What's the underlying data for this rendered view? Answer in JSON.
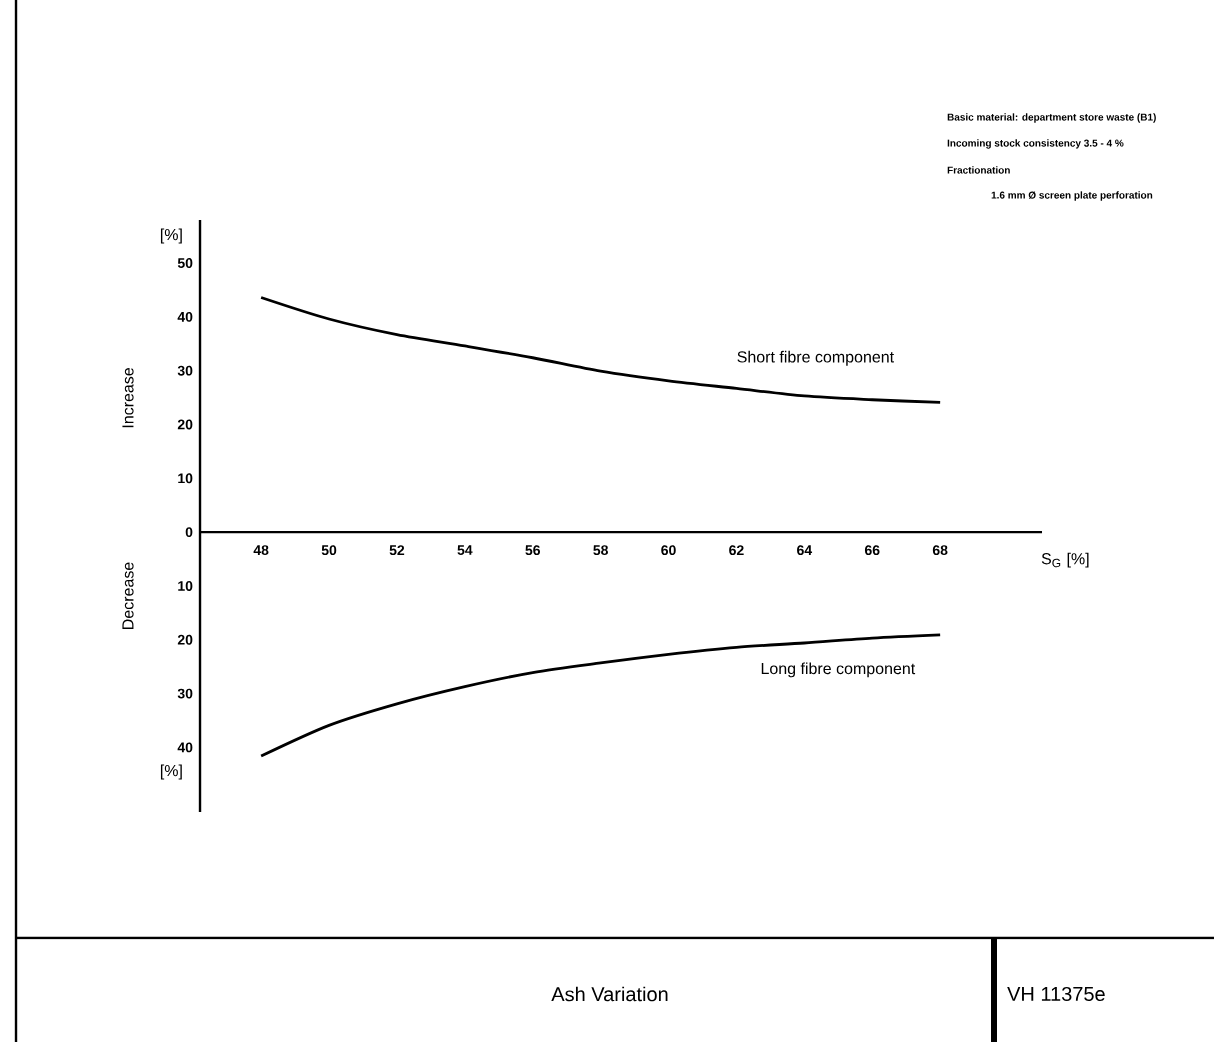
{
  "chart_data": {
    "type": "line",
    "title": "Ash Variation",
    "xlabel": "S$_{G}$ [%]",
    "ylabel": "Increase",
    "annotations": [
      "Basic material: department store waste (B1)",
      "Incoming stock consistency 3.5 - 4 %",
      "Fractionation",
      "1.6 mm Ø screen plate perforation",
      "[%]",
      "Decrease",
      "[%]",
      "VH 11375e"
    ],
    "x": [
      48,
      50,
      52,
      54,
      56,
      58,
      60,
      62,
      64,
      66,
      68
    ],
    "series": [
      {
        "name": "Short fibre component",
        "color": "#000000",
        "values": [
          43.6,
          39.6,
          36.7,
          34.6,
          32.4,
          29.9,
          28.1,
          26.7,
          25.3,
          24.6,
          24.1
        ]
      },
      {
        "name": "Long fibre component",
        "color": "#000000",
        "values": [
          -41.6,
          -35.9,
          -31.9,
          -28.7,
          -26.1,
          -24.3,
          -22.7,
          -21.4,
          -20.6,
          -19.7,
          -19.1
        ]
      }
    ],
    "xlim": [
      46.2,
      71
    ],
    "ylim": [
      -52,
      58
    ],
    "xticks": [
      48,
      50,
      52,
      54,
      56,
      58,
      60,
      62,
      64,
      66,
      68
    ],
    "yticks": [
      {
        "value": -40,
        "label": "40"
      },
      {
        "value": -30,
        "label": "30"
      },
      {
        "value": -20,
        "label": "20"
      },
      {
        "value": -10,
        "label": "10"
      },
      0,
      10,
      20,
      30,
      40,
      50
    ],
    "grid": false,
    "legend": false,
    "marker": "none",
    "line_style": "solid"
  }
}
